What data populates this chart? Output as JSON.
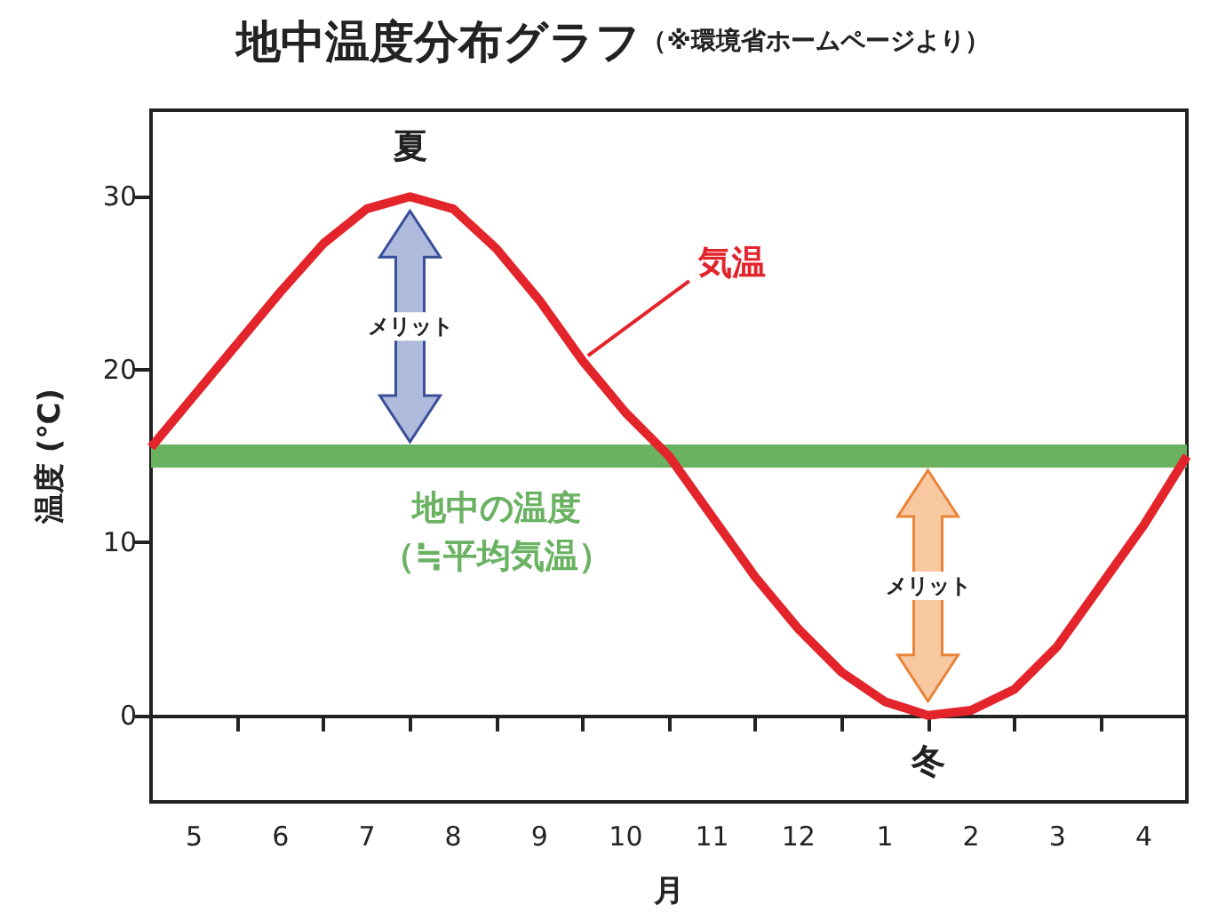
{
  "chart_data": {
    "type": "line",
    "title": "地中温度分布グラフ",
    "subtitle": "（※環境省ホームページより）",
    "xlabel": "月",
    "ylabel": "温度 (℃)",
    "categories": [
      null,
      "5",
      null,
      "6",
      null,
      "7",
      null,
      "8",
      null,
      "9",
      null,
      "10",
      null,
      "11",
      null,
      "12",
      null,
      "1",
      null,
      "2",
      null,
      "3",
      null,
      "4",
      null
    ],
    "ylim": [
      -5,
      35
    ],
    "yticks": [
      0,
      10,
      20,
      30
    ],
    "marker": "none",
    "line_style": "solid",
    "series": [
      {
        "name": "気温",
        "color": "#e3242b",
        "values": [
          15.5,
          18.5,
          21.5,
          24.5,
          27.3,
          29.3,
          30,
          29.3,
          27,
          24,
          20.5,
          17.5,
          15,
          11.5,
          8,
          5,
          2.5,
          0.8,
          0,
          0.3,
          1.5,
          4,
          7.5,
          11,
          15
        ]
      },
      {
        "name": "地中の温度（≒平均気温）",
        "color": "#6ab262",
        "values": [
          15,
          15,
          15,
          15,
          15,
          15,
          15,
          15,
          15,
          15,
          15,
          15,
          15,
          15,
          15,
          15,
          15,
          15,
          15,
          15,
          15,
          15,
          15,
          15,
          15
        ]
      }
    ],
    "annotations": [
      "夏",
      "冬",
      "メリット",
      "メリット"
    ]
  }
}
